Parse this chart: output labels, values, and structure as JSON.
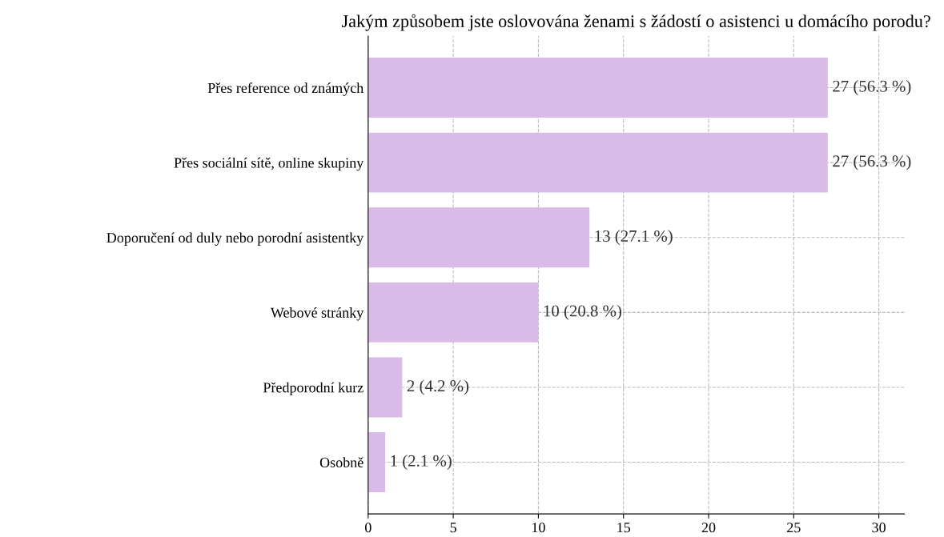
{
  "chart_data": {
    "type": "bar",
    "orientation": "horizontal",
    "title": "Jakým způsobem jste oslovována ženami s žádostí o asistenci u domácího porodu?",
    "categories": [
      "Přes reference od známých",
      "Přes sociální sítě, online skupiny",
      "Doporučení od duly nebo porodní asistentky",
      "Webové stránky",
      "Předporodní kurz",
      "Osobně"
    ],
    "values": [
      27,
      27,
      13,
      10,
      2,
      1
    ],
    "value_labels": [
      "27 (56.3 %)",
      "27 (56.3 %)",
      "13 (27.1 %)",
      "10 (20.8 %)",
      "2 (4.2 %)",
      "1 (2.1 %)"
    ],
    "color": "#d8bbe6",
    "xlim": [
      0,
      31.5
    ],
    "xticks": [
      0,
      5,
      10,
      15,
      20,
      25,
      30
    ],
    "grid": true
  }
}
